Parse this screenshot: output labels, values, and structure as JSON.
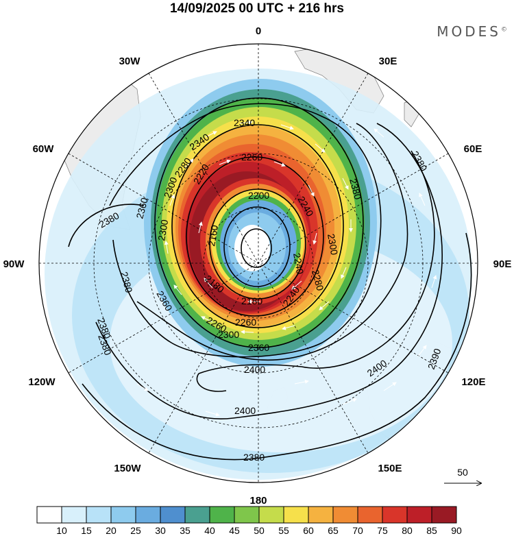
{
  "map": {
    "title": "14/09/2025  00 UTC  + 216 hrs",
    "brand": "MODES",
    "brand_mark": "©",
    "projection": "south-polar-stereographic",
    "field": "geopotential height contours with wind speed shading and wind vectors"
  },
  "longitude_labels": [
    "0",
    "30E",
    "60E",
    "90E",
    "120E",
    "150E",
    "180",
    "150W",
    "120W",
    "90W",
    "60W",
    "30W"
  ],
  "contours": {
    "labels": [
      "2340",
      "2340",
      "2260",
      "2300",
      "2300",
      "2300",
      "2360",
      "2380",
      "2380",
      "2380",
      "2360",
      "2220",
      "2200",
      "2180",
      "2160",
      "2180",
      "2240",
      "2260",
      "2300",
      "2360",
      "2380",
      "2400",
      "2400",
      "2400",
      "2390",
      "2380",
      "2380",
      "2380",
      "2240",
      "2240",
      "2280",
      "2280",
      "2260"
    ]
  },
  "reference_vector": {
    "label": "50"
  },
  "colorbar": {
    "thresholds": [
      "10",
      "15",
      "20",
      "25",
      "30",
      "35",
      "40",
      "45",
      "50",
      "55",
      "60",
      "65",
      "70",
      "75",
      "80",
      "85",
      "90"
    ],
    "colors": [
      "#ffffff",
      "#d8f0fb",
      "#b8e2f8",
      "#8ecbee",
      "#6aace0",
      "#4f8fcf",
      "#4aa090",
      "#4fb34a",
      "#7fc64b",
      "#c5dc4b",
      "#f6e04b",
      "#f5b240",
      "#f08c34",
      "#e9642e",
      "#d9352a",
      "#bd1f28",
      "#991a24"
    ]
  }
}
